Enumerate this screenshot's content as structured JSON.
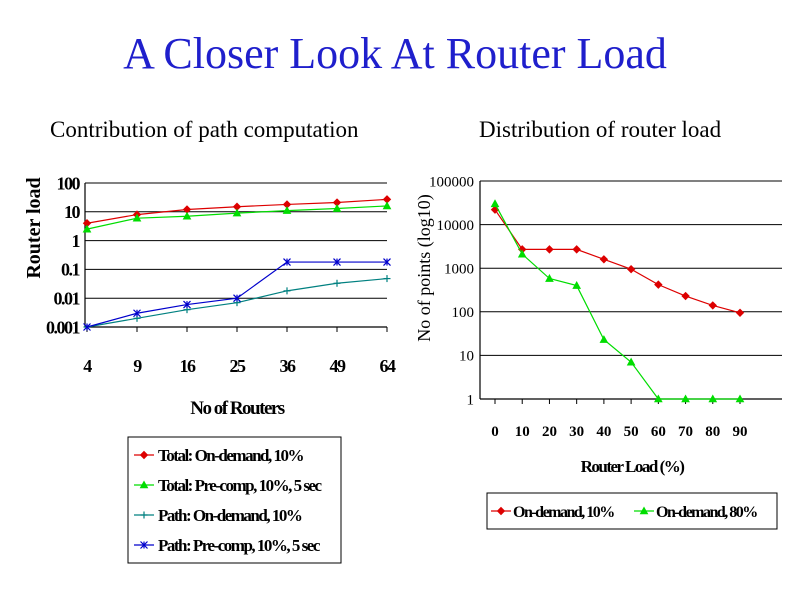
{
  "title": "A Closer Look At Router Load",
  "chart_data": [
    {
      "type": "line",
      "title": "Contribution of path computation",
      "xlabel": "No of Routers",
      "ylabel": "Router load",
      "yscale": "log",
      "categories": [
        "4",
        "9",
        "16",
        "25",
        "36",
        "49",
        "64"
      ],
      "y_ticks": [
        "0.001",
        "0.01",
        "0.1",
        "1",
        "10",
        "100"
      ],
      "ylim": [
        0.001,
        100
      ],
      "grid": true,
      "legend_position": "bottom",
      "series": [
        {
          "name": "Total: On-demand, 10%",
          "color": "#dd0000",
          "marker": "diamond",
          "values": [
            4,
            8,
            12,
            15,
            18,
            21,
            27
          ]
        },
        {
          "name": "Total: Pre-comp, 10%, 5 sec",
          "color": "#00dd00",
          "marker": "triangle",
          "values": [
            2.5,
            6,
            7,
            9,
            11,
            13,
            16
          ]
        },
        {
          "name": "Path: On-demand, 10%",
          "color": "#008080",
          "marker": "plus",
          "values": [
            0.001,
            0.002,
            0.004,
            0.007,
            0.018,
            0.033,
            0.048
          ]
        },
        {
          "name": "Path: Pre-comp, 10%, 5 sec",
          "color": "#0000cc",
          "marker": "star",
          "values": [
            0.001,
            0.003,
            0.006,
            0.01,
            0.18,
            0.18,
            0.18
          ]
        }
      ]
    },
    {
      "type": "line",
      "title": "Distribution of router load",
      "xlabel": "Router Load (%)",
      "ylabel": "No of points (log10)",
      "yscale": "log",
      "categories": [
        "0",
        "10",
        "20",
        "30",
        "40",
        "50",
        "60",
        "70",
        "80",
        "90"
      ],
      "y_ticks": [
        "1",
        "10",
        "100",
        "1000",
        "10000",
        "100000"
      ],
      "ylim": [
        1,
        100000
      ],
      "grid": true,
      "legend_position": "bottom",
      "series": [
        {
          "name": "On-demand, 10%",
          "color": "#dd0000",
          "marker": "diamond",
          "values": [
            22000,
            2700,
            2700,
            2700,
            1600,
            950,
            420,
            230,
            140,
            95
          ]
        },
        {
          "name": "On-demand, 80%",
          "color": "#00dd00",
          "marker": "triangle",
          "values": [
            30000,
            2100,
            580,
            400,
            23,
            7,
            1,
            1,
            1,
            1
          ]
        }
      ]
    }
  ]
}
